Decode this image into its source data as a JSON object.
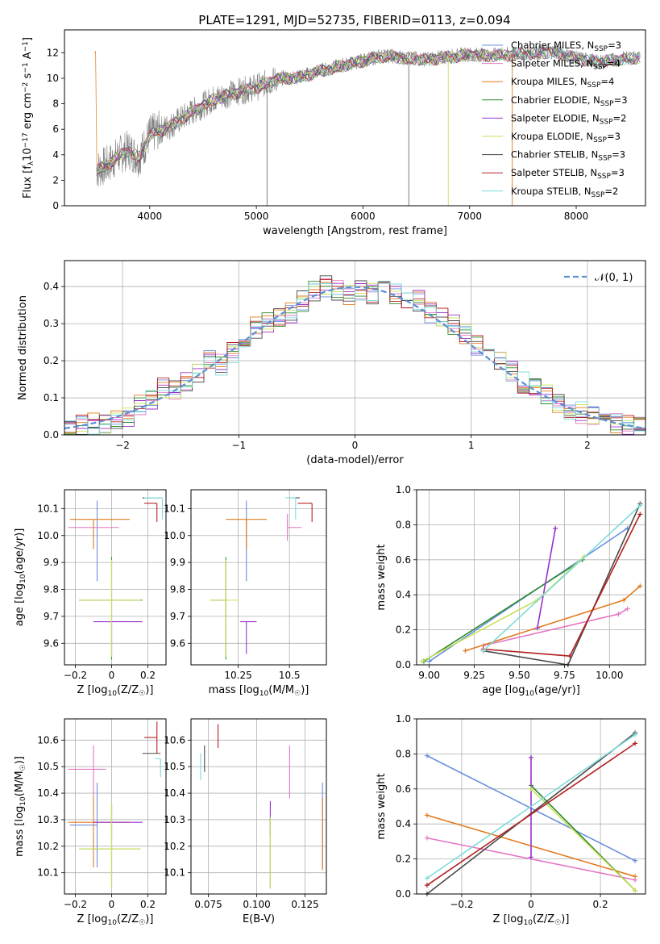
{
  "figure": {
    "title": "PLATE=1291, MJD=52735, FIBERID=0113, z=0.094"
  },
  "series_styles": [
    {
      "name": "Chabrier MILES",
      "nssp": "3",
      "color": "#6a8fdd"
    },
    {
      "name": "Salpeter MILES",
      "nssp": "4",
      "color": "#e377c2"
    },
    {
      "name": "Kroupa MILES",
      "nssp": "4",
      "color": "#e07b1f"
    },
    {
      "name": "Chabrier ELODIE",
      "nssp": "3",
      "color": "#2e8b2e"
    },
    {
      "name": "Salpeter ELODIE",
      "nssp": "2",
      "color": "#9932cc"
    },
    {
      "name": "Kroupa ELODIE",
      "nssp": "3",
      "color": "#c8e05a"
    },
    {
      "name": "Chabrier STELIB",
      "nssp": "3",
      "color": "#4a4a4a"
    },
    {
      "name": "Salpeter STELIB",
      "nssp": "3",
      "color": "#b22222"
    },
    {
      "name": "Kroupa STELIB",
      "nssp": "2",
      "color": "#7fdbdb"
    }
  ],
  "chart_data": [
    {
      "id": "spectrum",
      "type": "line",
      "title": "PLATE=1291, MJD=52735, FIBERID=0113, z=0.094",
      "xlabel": "wavelength [Angstrom, rest frame]",
      "ylabel": "Flux [f_λ10^-17 erg cm^-2 s^-1 A^-1]",
      "xlim": [
        3200,
        8650
      ],
      "ylim": [
        0,
        13.8
      ],
      "xticks": [
        4000,
        5000,
        6000,
        7000,
        8000
      ],
      "yticks": [
        0,
        2,
        4,
        6,
        8,
        10,
        12
      ],
      "legend_position": "upper-right",
      "observed_color": "#808080",
      "continuum": {
        "x": [
          3500,
          3600,
          3700,
          3800,
          3900,
          4000,
          4200,
          4400,
          4600,
          4800,
          5000,
          5200,
          5400,
          5600,
          5800,
          6000,
          6200,
          6400,
          6600,
          6800,
          7000,
          7200,
          7400,
          7600,
          7800,
          8000,
          8200,
          8400,
          8600
        ],
        "y": [
          2.8,
          3.2,
          3.9,
          4.4,
          3.8,
          5.6,
          6.3,
          7.4,
          8.4,
          8.9,
          9.3,
          10.0,
          10.1,
          10.6,
          11.0,
          11.4,
          11.8,
          11.6,
          11.5,
          11.7,
          11.9,
          11.8,
          11.9,
          12.0,
          12.1,
          11.6,
          11.3,
          11.5,
          11.7
        ]
      },
      "absorption_spikes": [
        {
          "x": 5100,
          "ybottom": 0.0
        },
        {
          "x": 6430,
          "ybottom": 0.0
        },
        {
          "x": 6800,
          "ybottom": 0.0
        },
        {
          "x": 7400,
          "ybottom": 0.0
        }
      ]
    },
    {
      "id": "residual-histogram",
      "type": "step",
      "xlabel": "(data-model)/error",
      "ylabel": "Normed distribution",
      "xlim": [
        -2.5,
        2.5
      ],
      "ylim": [
        0,
        0.47
      ],
      "xticks": [
        -2,
        -1,
        0,
        1,
        2
      ],
      "yticks": [
        0.0,
        0.1,
        0.2,
        0.3,
        0.4
      ],
      "grid": true,
      "legend": "𝒩(0, 1)",
      "legend_position": "upper-right",
      "gaussian_color": "#5b8fd6",
      "bin_edges": [
        -2.5,
        -2.4,
        -2.3,
        -2.2,
        -2.1,
        -2.0,
        -1.9,
        -1.8,
        -1.7,
        -1.6,
        -1.5,
        -1.4,
        -1.3,
        -1.2,
        -1.1,
        -1.0,
        -0.9,
        -0.8,
        -0.7,
        -0.6,
        -0.5,
        -0.4,
        -0.3,
        -0.2,
        -0.1,
        0.0,
        0.1,
        0.2,
        0.3,
        0.4,
        0.5,
        0.6,
        0.7,
        0.8,
        0.9,
        1.0,
        1.1,
        1.2,
        1.3,
        1.4,
        1.5,
        1.6,
        1.7,
        1.8,
        1.9,
        2.0,
        2.1,
        2.2,
        2.3,
        2.4,
        2.5
      ],
      "base_values": [
        0.02,
        0.025,
        0.03,
        0.03,
        0.045,
        0.05,
        0.08,
        0.09,
        0.13,
        0.12,
        0.14,
        0.17,
        0.2,
        0.19,
        0.22,
        0.26,
        0.29,
        0.3,
        0.32,
        0.33,
        0.36,
        0.39,
        0.4,
        0.39,
        0.38,
        0.39,
        0.38,
        0.4,
        0.38,
        0.37,
        0.36,
        0.33,
        0.32,
        0.3,
        0.27,
        0.24,
        0.21,
        0.2,
        0.17,
        0.14,
        0.13,
        0.11,
        0.09,
        0.07,
        0.06,
        0.05,
        0.04,
        0.03,
        0.025,
        0.02
      ]
    },
    {
      "id": "age-vs-Z",
      "type": "errorbar",
      "xlabel": "Z [log10(Z/Z☉)]",
      "ylabel": "age [log10(age/yr)]",
      "xlim": [
        -0.26,
        0.3
      ],
      "ylim": [
        9.52,
        10.17
      ],
      "xticks": [
        -0.2,
        0.0,
        0.2
      ],
      "yticks": [
        9.6,
        9.7,
        9.8,
        9.9,
        10.0,
        10.1
      ],
      "points": [
        {
          "s": 0,
          "x": -0.08,
          "y": 10.05,
          "xerr": [
            0.0,
            0.0
          ],
          "yerr": [
            0.22,
            0.08
          ]
        },
        {
          "s": 1,
          "x": -0.12,
          "y": 10.03,
          "xerr": [
            0.12,
            0.16
          ],
          "yerr": [
            0.0,
            0.0
          ]
        },
        {
          "s": 2,
          "x": -0.1,
          "y": 10.06,
          "xerr": [
            0.13,
            0.2
          ],
          "yerr": [
            0.11,
            0.0
          ]
        },
        {
          "s": 3,
          "x": 0.0,
          "y": 9.76,
          "xerr": [
            0.18,
            0.17
          ],
          "yerr": [
            0.22,
            0.16
          ]
        },
        {
          "s": 4,
          "x": 0.0,
          "y": 9.68,
          "xerr": [
            0.1,
            0.17
          ],
          "yerr": [
            0.12,
            0.0
          ]
        },
        {
          "s": 5,
          "x": 0.0,
          "y": 9.76,
          "xerr": [
            0.18,
            0.16
          ],
          "yerr": [
            0.21,
            0.15
          ]
        },
        {
          "s": 6,
          "x": 0.27,
          "y": 10.14,
          "xerr": [
            0.1,
            0.0
          ],
          "yerr": [
            0.0,
            0.0
          ]
        },
        {
          "s": 7,
          "x": 0.25,
          "y": 10.12,
          "xerr": [
            0.07,
            0.0
          ],
          "yerr": [
            0.07,
            0.0
          ]
        },
        {
          "s": 8,
          "x": 0.28,
          "y": 10.14,
          "xerr": [
            0.1,
            0.0
          ],
          "yerr": [
            0.08,
            0.0
          ]
        }
      ]
    },
    {
      "id": "age-vs-mass",
      "type": "errorbar",
      "xlabel": "mass [log10(M/M☉)]",
      "ylabel": "",
      "xlim": [
        10.02,
        10.68
      ],
      "ylim": [
        9.52,
        10.17
      ],
      "xticks": [
        10.25,
        10.5
      ],
      "yticks": [
        9.6,
        9.7,
        9.8,
        9.9,
        10.0,
        10.1
      ],
      "points": [
        {
          "s": 0,
          "x": 10.29,
          "y": 10.05,
          "xerr": [
            0.0,
            0.0
          ],
          "yerr": [
            0.22,
            0.08
          ]
        },
        {
          "s": 1,
          "x": 10.49,
          "y": 10.03,
          "xerr": [
            0.0,
            0.07
          ],
          "yerr": [
            0.05,
            0.05
          ]
        },
        {
          "s": 2,
          "x": 10.29,
          "y": 10.06,
          "xerr": [
            0.1,
            0.1
          ],
          "yerr": [
            0.11,
            0.0
          ]
        },
        {
          "s": 3,
          "x": 10.19,
          "y": 9.76,
          "xerr": [
            0.07,
            0.0
          ],
          "yerr": [
            0.22,
            0.16
          ]
        },
        {
          "s": 4,
          "x": 10.29,
          "y": 9.68,
          "xerr": [
            0.03,
            0.05
          ],
          "yerr": [
            0.12,
            0.0
          ]
        },
        {
          "s": 5,
          "x": 10.19,
          "y": 9.76,
          "xerr": [
            0.08,
            0.06
          ],
          "yerr": [
            0.21,
            0.15
          ]
        },
        {
          "s": 6,
          "x": 10.55,
          "y": 10.14,
          "xerr": [
            0.05,
            0.0
          ],
          "yerr": [
            0.0,
            0.0
          ]
        },
        {
          "s": 7,
          "x": 10.61,
          "y": 10.12,
          "xerr": [
            0.07,
            0.0
          ],
          "yerr": [
            0.07,
            0.0
          ]
        },
        {
          "s": 8,
          "x": 10.53,
          "y": 10.14,
          "xerr": [
            0.05,
            0.0
          ],
          "yerr": [
            0.08,
            0.0
          ]
        }
      ]
    },
    {
      "id": "mass-weight-vs-age",
      "type": "line",
      "xlabel": "age [log10(age/yr)]",
      "ylabel": "mass weight",
      "xlim": [
        8.93,
        10.2
      ],
      "ylim": [
        0,
        1
      ],
      "xticks": [
        9.0,
        9.25,
        9.5,
        9.75,
        10.0
      ],
      "xtick_labels": [
        "9.00",
        "9.25",
        "9.50",
        "9.75",
        "10.00"
      ],
      "yticks": [
        0.0,
        0.2,
        0.4,
        0.6,
        0.8,
        1.0
      ],
      "grid": true,
      "series": [
        {
          "s": 0,
          "x": [
            9.0,
            10.1
          ],
          "y": [
            0.02,
            0.78
          ]
        },
        {
          "s": 1,
          "x": [
            9.3,
            10.05,
            10.1
          ],
          "y": [
            0.11,
            0.29,
            0.32
          ]
        },
        {
          "s": 2,
          "x": [
            9.2,
            10.08,
            10.17
          ],
          "y": [
            0.08,
            0.37,
            0.45
          ]
        },
        {
          "s": 3,
          "x": [
            8.97,
            9.85
          ],
          "y": [
            0.02,
            0.6
          ]
        },
        {
          "s": 4,
          "x": [
            9.6,
            9.7
          ],
          "y": [
            0.21,
            0.78
          ]
        },
        {
          "s": 5,
          "x": [
            8.96,
            9.6,
            9.86
          ],
          "y": [
            0.02,
            0.37,
            0.62
          ]
        },
        {
          "s": 6,
          "x": [
            9.3,
            9.77,
            10.17
          ],
          "y": [
            0.08,
            0.0,
            0.92
          ]
        },
        {
          "s": 7,
          "x": [
            9.3,
            9.78,
            10.17
          ],
          "y": [
            0.09,
            0.05,
            0.86
          ]
        },
        {
          "s": 8,
          "x": [
            9.3,
            10.17
          ],
          "y": [
            0.08,
            0.91
          ]
        }
      ]
    },
    {
      "id": "mass-vs-Z",
      "type": "errorbar",
      "xlabel": "Z [log10(Z/Z☉)]",
      "ylabel": "mass [log10(M/M☉)]",
      "xlim": [
        -0.26,
        0.3
      ],
      "ylim": [
        10.02,
        10.68
      ],
      "xticks": [
        -0.2,
        0.0,
        0.2
      ],
      "yticks": [
        10.1,
        10.2,
        10.3,
        10.4,
        10.5,
        10.6
      ],
      "points": [
        {
          "s": 0,
          "x": -0.08,
          "y": 10.28,
          "xerr": [
            0.15,
            0.0
          ],
          "yerr": [
            0.16,
            0.16
          ]
        },
        {
          "s": 1,
          "x": -0.1,
          "y": 10.49,
          "xerr": [
            0.14,
            0.07
          ],
          "yerr": [
            0.1,
            0.09
          ]
        },
        {
          "s": 2,
          "x": -0.1,
          "y": 10.29,
          "xerr": [
            0.14,
            0.2
          ],
          "yerr": [
            0.17,
            0.1
          ]
        },
        {
          "s": 3,
          "x": 0.0,
          "y": 10.19,
          "xerr": [
            0.18,
            0.16
          ],
          "yerr": [
            0.15,
            0.17
          ]
        },
        {
          "s": 4,
          "x": 0.0,
          "y": 10.29,
          "xerr": [
            0.1,
            0.17
          ],
          "yerr": [
            0.06,
            0.07
          ]
        },
        {
          "s": 5,
          "x": 0.0,
          "y": 10.19,
          "xerr": [
            0.18,
            0.16
          ],
          "yerr": [
            0.15,
            0.17
          ]
        },
        {
          "s": 6,
          "x": 0.27,
          "y": 10.55,
          "xerr": [
            0.1,
            0.0
          ],
          "yerr": [
            0.0,
            0.0
          ]
        },
        {
          "s": 7,
          "x": 0.25,
          "y": 10.61,
          "xerr": [
            0.07,
            0.0
          ],
          "yerr": [
            0.06,
            0.06
          ]
        },
        {
          "s": 8,
          "x": 0.27,
          "y": 10.53,
          "xerr": [
            0.03,
            0.0
          ],
          "yerr": [
            0.07,
            0.0
          ]
        }
      ]
    },
    {
      "id": "mass-vs-ebv",
      "type": "errorbar",
      "xlabel": "E(B-V)",
      "ylabel": "",
      "xlim": [
        0.066,
        0.136
      ],
      "ylim": [
        10.02,
        10.68
      ],
      "xticks": [
        0.075,
        0.1,
        0.125
      ],
      "xtick_labels": [
        "0.075",
        "0.100",
        "0.125"
      ],
      "yticks": [
        10.1,
        10.2,
        10.3,
        10.4,
        10.5,
        10.6
      ],
      "points": [
        {
          "s": 0,
          "x": 0.134,
          "y": 10.28,
          "xerr": [
            0.0,
            0.0
          ],
          "yerr": [
            0.16,
            0.16
          ]
        },
        {
          "s": 1,
          "x": 0.117,
          "y": 10.48,
          "xerr": [
            0.0,
            0.0
          ],
          "yerr": [
            0.1,
            0.1
          ]
        },
        {
          "s": 2,
          "x": 0.134,
          "y": 10.28,
          "xerr": [
            0.0,
            0.0
          ],
          "yerr": [
            0.17,
            0.1
          ]
        },
        {
          "s": 3,
          "x": 0.107,
          "y": 10.19,
          "xerr": [
            0.0,
            0.0
          ],
          "yerr": [
            0.15,
            0.12
          ]
        },
        {
          "s": 4,
          "x": 0.107,
          "y": 10.3,
          "xerr": [
            0.0,
            0.0
          ],
          "yerr": [
            0.06,
            0.07
          ]
        },
        {
          "s": 5,
          "x": 0.107,
          "y": 10.19,
          "xerr": [
            0.0,
            0.0
          ],
          "yerr": [
            0.15,
            0.12
          ]
        },
        {
          "s": 6,
          "x": 0.073,
          "y": 10.53,
          "xerr": [
            0.0,
            0.0
          ],
          "yerr": [
            0.05,
            0.05
          ]
        },
        {
          "s": 7,
          "x": 0.08,
          "y": 10.62,
          "xerr": [
            0.0,
            0.0
          ],
          "yerr": [
            0.05,
            0.04
          ]
        },
        {
          "s": 8,
          "x": 0.071,
          "y": 10.5,
          "xerr": [
            0.0,
            0.0
          ],
          "yerr": [
            0.05,
            0.05
          ]
        }
      ]
    },
    {
      "id": "mass-weight-vs-Z",
      "type": "line",
      "xlabel": "Z [log10(Z/Z☉)]",
      "ylabel": "mass weight",
      "xlim": [
        -0.33,
        0.33
      ],
      "ylim": [
        0,
        1
      ],
      "xticks": [
        -0.2,
        0.0,
        0.2
      ],
      "yticks": [
        0.0,
        0.2,
        0.4,
        0.6,
        0.8,
        1.0
      ],
      "grid": true,
      "series": [
        {
          "s": 0,
          "x": [
            -0.3,
            0.3
          ],
          "y": [
            0.79,
            0.19
          ]
        },
        {
          "s": 1,
          "x": [
            -0.3,
            0.3
          ],
          "y": [
            0.32,
            0.08
          ]
        },
        {
          "s": 2,
          "x": [
            -0.3,
            0.3
          ],
          "y": [
            0.45,
            0.1
          ]
        },
        {
          "s": 3,
          "x": [
            0.0,
            0.3
          ],
          "y": [
            0.62,
            0.02
          ]
        },
        {
          "s": 4,
          "x": [
            0.0,
            0.0
          ],
          "y": [
            0.21,
            0.78
          ]
        },
        {
          "s": 5,
          "x": [
            0.0,
            0.3
          ],
          "y": [
            0.6,
            0.02
          ]
        },
        {
          "s": 6,
          "x": [
            -0.3,
            0.3
          ],
          "y": [
            0.0,
            0.92
          ]
        },
        {
          "s": 7,
          "x": [
            -0.3,
            0.3
          ],
          "y": [
            0.05,
            0.86
          ]
        },
        {
          "s": 8,
          "x": [
            -0.3,
            0.3
          ],
          "y": [
            0.09,
            0.91
          ]
        }
      ]
    }
  ]
}
